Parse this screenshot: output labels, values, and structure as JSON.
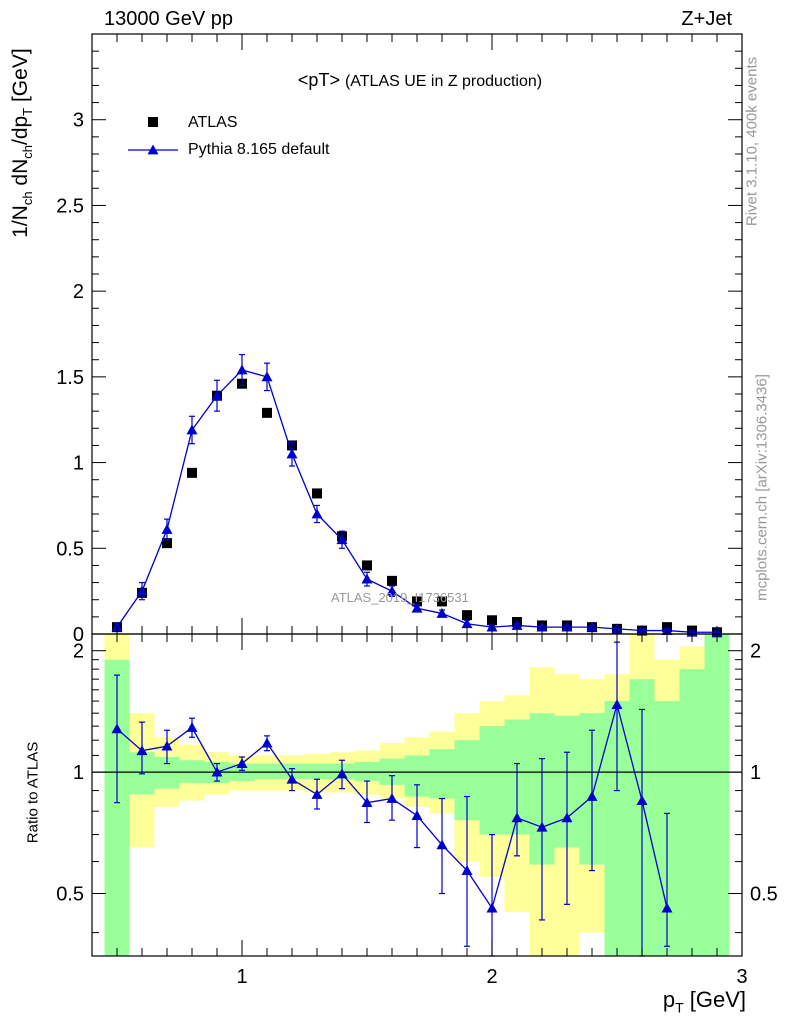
{
  "header": {
    "energy_label": "13000 GeV pp",
    "process_label": "Z+Jet"
  },
  "side_labels": {
    "rivet": "Rivet 3.1.10,  400k events",
    "mcplots": "mcplots.cern.ch [arXiv:1306.3436]"
  },
  "chart_data": [
    {
      "type": "scatter",
      "panel": "main",
      "title": "<pT>",
      "subtitle": "(ATLAS UE in Z production)",
      "watermark": "ATLAS_2019_I1736531",
      "xlabel": "p_T [GeV]",
      "ylabel": "1/N_ch dN_ch/dp_T [GeV]",
      "xlim": [
        0.4,
        3.0
      ],
      "ylim": [
        0,
        3.5
      ],
      "yticks": [
        0,
        0.5,
        1,
        1.5,
        2,
        2.5,
        3
      ],
      "ytick_labels": [
        "0",
        "0.5",
        "1",
        "1.5",
        "2",
        "2.5",
        "3"
      ],
      "legend_position": "top-left",
      "x": [
        0.5,
        0.6,
        0.7,
        0.8,
        0.9,
        1.0,
        1.1,
        1.2,
        1.3,
        1.4,
        1.5,
        1.6,
        1.7,
        1.8,
        1.9,
        2.0,
        2.1,
        2.2,
        2.3,
        2.4,
        2.5,
        2.6,
        2.7,
        2.8,
        2.9
      ],
      "series": [
        {
          "name": "ATLAS",
          "marker": "square",
          "color": "#000000",
          "values": [
            0.04,
            0.24,
            0.53,
            0.94,
            1.39,
            1.46,
            1.29,
            1.1,
            0.82,
            0.57,
            0.4,
            0.31,
            0.19,
            0.19,
            0.11,
            0.08,
            0.07,
            0.05,
            0.05,
            0.04,
            0.03,
            0.02,
            0.04,
            0.02,
            0.01
          ]
        },
        {
          "name": "Pythia 8.165 default",
          "marker": "triangle",
          "color": "#0000cc",
          "values": [
            0.04,
            0.25,
            0.61,
            1.19,
            1.39,
            1.54,
            1.5,
            1.05,
            0.7,
            0.55,
            0.32,
            0.25,
            0.15,
            0.12,
            0.06,
            0.04,
            0.05,
            0.04,
            0.04,
            0.04,
            0.03,
            0.02,
            0.02,
            0.01,
            0.01
          ],
          "errors": [
            0.02,
            0.05,
            0.06,
            0.08,
            0.09,
            0.09,
            0.08,
            0.07,
            0.05,
            0.05,
            0.04,
            0.03,
            0.02,
            0.02,
            0.02,
            0.01,
            0.01,
            0.01,
            0.01,
            0.01,
            0.01,
            0.01,
            0.01,
            0.01,
            0.01
          ]
        }
      ]
    },
    {
      "type": "line",
      "panel": "ratio",
      "xlabel": "p_T [GeV]",
      "ylabel": "Ratio to ATLAS",
      "xlim": [
        0.4,
        3.0
      ],
      "ylim": [
        0.35,
        2.2
      ],
      "xticks": [
        1,
        2,
        3
      ],
      "xtick_labels": [
        "1",
        "2",
        "3"
      ],
      "yticks": [
        0.5,
        1,
        2
      ],
      "ytick_labels": [
        "0.5",
        "1",
        "2"
      ],
      "reference_line": 1,
      "bins": [
        0.45,
        0.55,
        0.65,
        0.75,
        0.85,
        0.95,
        1.05,
        1.15,
        1.25,
        1.35,
        1.45,
        1.55,
        1.65,
        1.75,
        1.85,
        1.95,
        2.05,
        2.15,
        2.25,
        2.35,
        2.45,
        2.55,
        2.65,
        2.75,
        2.85,
        2.95
      ],
      "bands": [
        {
          "name": "total uncertainty",
          "color": "#ffff99",
          "low": [
            0.35,
            0.65,
            0.82,
            0.85,
            0.88,
            0.9,
            0.9,
            0.9,
            0.89,
            0.89,
            0.88,
            0.86,
            0.82,
            0.79,
            0.6,
            0.55,
            0.45,
            0.35,
            0.35,
            0.4,
            0.35,
            0.35,
            0.35,
            0.45,
            0.35
          ],
          "high": [
            2.2,
            1.4,
            1.22,
            1.17,
            1.12,
            1.1,
            1.1,
            1.1,
            1.11,
            1.12,
            1.13,
            1.18,
            1.22,
            1.26,
            1.4,
            1.5,
            1.55,
            1.82,
            1.75,
            1.7,
            1.75,
            2.2,
            1.9,
            2.05,
            2.2
          ]
        },
        {
          "name": "statistical uncertainty",
          "color": "#99ff99",
          "low": [
            0.35,
            0.88,
            0.91,
            0.94,
            0.94,
            0.95,
            0.96,
            0.96,
            0.96,
            0.96,
            0.95,
            0.93,
            0.87,
            0.86,
            0.76,
            0.7,
            0.7,
            0.59,
            0.65,
            0.59,
            0.35,
            0.35,
            0.35,
            0.35,
            0.35
          ],
          "high": [
            1.9,
            1.12,
            1.09,
            1.07,
            1.06,
            1.05,
            1.05,
            1.05,
            1.05,
            1.05,
            1.06,
            1.08,
            1.1,
            1.14,
            1.2,
            1.3,
            1.35,
            1.4,
            1.38,
            1.4,
            1.5,
            1.7,
            1.5,
            1.8,
            2.2
          ]
        }
      ],
      "x": [
        0.5,
        0.6,
        0.7,
        0.8,
        0.9,
        1.0,
        1.1,
        1.2,
        1.3,
        1.4,
        1.5,
        1.6,
        1.7,
        1.8,
        1.9,
        2.0,
        2.1,
        2.2,
        2.3,
        2.4,
        2.5,
        2.6,
        2.7
      ],
      "series": [
        {
          "name": "Pythia 8.165 default",
          "marker": "triangle",
          "color": "#0000cc",
          "values": [
            1.28,
            1.13,
            1.16,
            1.29,
            1.0,
            1.05,
            1.18,
            0.96,
            0.88,
            0.99,
            0.84,
            0.86,
            0.78,
            0.66,
            0.57,
            0.46,
            0.77,
            0.73,
            0.77,
            0.87,
            1.47,
            0.85,
            0.46
          ],
          "err_low": [
            0.44,
            0.14,
            0.11,
            0.07,
            0.05,
            0.04,
            0.05,
            0.06,
            0.07,
            0.08,
            0.09,
            0.1,
            0.13,
            0.16,
            0.2,
            0.13,
            0.15,
            0.3,
            0.3,
            0.3,
            0.57,
            0.5,
            0.09
          ],
          "err_high": [
            0.46,
            0.2,
            0.11,
            0.07,
            0.05,
            0.04,
            0.05,
            0.06,
            0.08,
            0.08,
            0.11,
            0.12,
            0.15,
            0.2,
            0.3,
            0.24,
            0.28,
            0.35,
            0.35,
            0.4,
            0.63,
            0.58,
            0.33
          ]
        }
      ]
    }
  ]
}
